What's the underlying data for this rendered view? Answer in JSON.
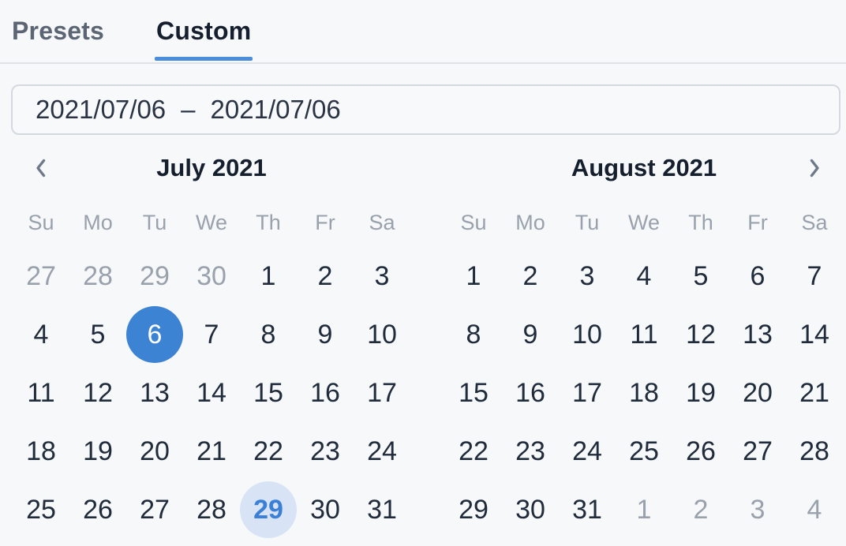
{
  "tabs": {
    "presets": "Presets",
    "custom": "Custom",
    "active": "Custom"
  },
  "range_input": {
    "start": "2021/07/06",
    "separator": "–",
    "end": "2021/07/06"
  },
  "calendar": {
    "day_names": [
      "Su",
      "Mo",
      "Tu",
      "We",
      "Th",
      "Fr",
      "Sa"
    ],
    "nav_icons": {
      "prev": "chevron-left-icon",
      "next": "chevron-right-icon"
    },
    "months": [
      {
        "title": "July 2021",
        "weeks": [
          [
            {
              "d": "27",
              "s": "out"
            },
            {
              "d": "28",
              "s": "out"
            },
            {
              "d": "29",
              "s": "out"
            },
            {
              "d": "30",
              "s": "out"
            },
            {
              "d": "1",
              "s": ""
            },
            {
              "d": "2",
              "s": ""
            },
            {
              "d": "3",
              "s": ""
            }
          ],
          [
            {
              "d": "4",
              "s": ""
            },
            {
              "d": "5",
              "s": ""
            },
            {
              "d": "6",
              "s": "selected"
            },
            {
              "d": "7",
              "s": ""
            },
            {
              "d": "8",
              "s": ""
            },
            {
              "d": "9",
              "s": ""
            },
            {
              "d": "10",
              "s": ""
            }
          ],
          [
            {
              "d": "11",
              "s": ""
            },
            {
              "d": "12",
              "s": ""
            },
            {
              "d": "13",
              "s": ""
            },
            {
              "d": "14",
              "s": ""
            },
            {
              "d": "15",
              "s": ""
            },
            {
              "d": "16",
              "s": ""
            },
            {
              "d": "17",
              "s": ""
            }
          ],
          [
            {
              "d": "18",
              "s": ""
            },
            {
              "d": "19",
              "s": ""
            },
            {
              "d": "20",
              "s": ""
            },
            {
              "d": "21",
              "s": ""
            },
            {
              "d": "22",
              "s": ""
            },
            {
              "d": "23",
              "s": ""
            },
            {
              "d": "24",
              "s": ""
            }
          ],
          [
            {
              "d": "25",
              "s": ""
            },
            {
              "d": "26",
              "s": ""
            },
            {
              "d": "27",
              "s": ""
            },
            {
              "d": "28",
              "s": ""
            },
            {
              "d": "29",
              "s": "highlight"
            },
            {
              "d": "30",
              "s": ""
            },
            {
              "d": "31",
              "s": ""
            }
          ]
        ]
      },
      {
        "title": "August 2021",
        "weeks": [
          [
            {
              "d": "1",
              "s": ""
            },
            {
              "d": "2",
              "s": ""
            },
            {
              "d": "3",
              "s": ""
            },
            {
              "d": "4",
              "s": ""
            },
            {
              "d": "5",
              "s": ""
            },
            {
              "d": "6",
              "s": ""
            },
            {
              "d": "7",
              "s": ""
            }
          ],
          [
            {
              "d": "8",
              "s": ""
            },
            {
              "d": "9",
              "s": ""
            },
            {
              "d": "10",
              "s": ""
            },
            {
              "d": "11",
              "s": ""
            },
            {
              "d": "12",
              "s": ""
            },
            {
              "d": "13",
              "s": ""
            },
            {
              "d": "14",
              "s": ""
            }
          ],
          [
            {
              "d": "15",
              "s": ""
            },
            {
              "d": "16",
              "s": ""
            },
            {
              "d": "17",
              "s": ""
            },
            {
              "d": "18",
              "s": ""
            },
            {
              "d": "19",
              "s": ""
            },
            {
              "d": "20",
              "s": ""
            },
            {
              "d": "21",
              "s": ""
            }
          ],
          [
            {
              "d": "22",
              "s": ""
            },
            {
              "d": "23",
              "s": ""
            },
            {
              "d": "24",
              "s": ""
            },
            {
              "d": "25",
              "s": ""
            },
            {
              "d": "26",
              "s": ""
            },
            {
              "d": "27",
              "s": ""
            },
            {
              "d": "28",
              "s": ""
            }
          ],
          [
            {
              "d": "29",
              "s": ""
            },
            {
              "d": "30",
              "s": ""
            },
            {
              "d": "31",
              "s": ""
            },
            {
              "d": "1",
              "s": "out"
            },
            {
              "d": "2",
              "s": "out"
            },
            {
              "d": "3",
              "s": "out"
            },
            {
              "d": "4",
              "s": "out"
            }
          ]
        ]
      }
    ]
  },
  "colors": {
    "bg": "#f7f8fa",
    "divider": "#dfe2e6",
    "underline": "#4a8edb",
    "accent": "#3d83d3",
    "accent-light": "#d8e4f6",
    "accent-text": "#3b7fd6",
    "input-border": "#d4d8df",
    "input-bg": "#f8f9fb",
    "text-title": "#151f2e",
    "text-inactive-tab": "#5b6574",
    "text-day": "#202b3b",
    "text-muted": "#99a1ac",
    "text-input": "#2b3444",
    "chevron": "#6e7989"
  }
}
